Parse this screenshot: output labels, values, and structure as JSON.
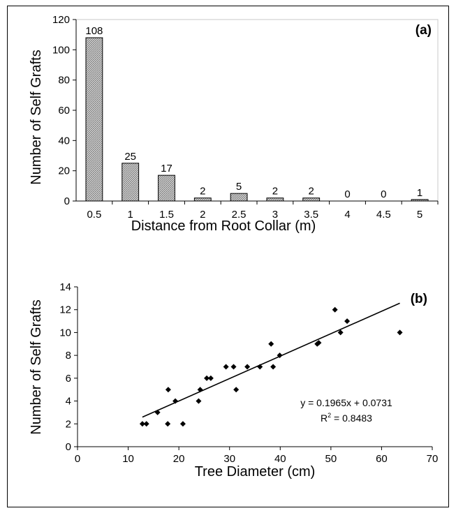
{
  "chart_data": [
    {
      "type": "bar",
      "panel_label": "(a)",
      "categories": [
        "0.5",
        "1",
        "1.5",
        "2",
        "2.5",
        "3",
        "3.5",
        "4",
        "4.5",
        "5"
      ],
      "values": [
        108,
        25,
        17,
        2,
        5,
        2,
        2,
        0,
        0,
        1
      ],
      "data_labels": [
        "108",
        "25",
        "17",
        "2",
        "5",
        "2",
        "2",
        "0",
        "0",
        "1"
      ],
      "xlabel": "Distance from Root Collar (m)",
      "ylabel": "Number of Self Grafts",
      "ylim": [
        0,
        120
      ],
      "yticks": [
        "0",
        "20",
        "40",
        "60",
        "80",
        "100",
        "120"
      ],
      "bar_fill": "#bdbdbd",
      "grid": false
    },
    {
      "type": "scatter",
      "panel_label": "(b)",
      "points": [
        [
          12.8,
          2
        ],
        [
          13.6,
          2
        ],
        [
          15.8,
          3
        ],
        [
          17.8,
          2
        ],
        [
          17.9,
          5
        ],
        [
          19.3,
          4
        ],
        [
          20.8,
          2
        ],
        [
          23.9,
          4
        ],
        [
          24.2,
          5
        ],
        [
          25.5,
          6
        ],
        [
          26.3,
          6
        ],
        [
          29.3,
          7
        ],
        [
          30.8,
          7
        ],
        [
          31.3,
          5
        ],
        [
          33.5,
          7
        ],
        [
          36.0,
          7
        ],
        [
          38.2,
          9
        ],
        [
          38.6,
          7
        ],
        [
          39.9,
          8
        ],
        [
          47.3,
          9
        ],
        [
          47.6,
          9.1
        ],
        [
          50.8,
          12
        ],
        [
          51.9,
          10
        ],
        [
          53.2,
          11
        ],
        [
          63.6,
          10
        ]
      ],
      "trendline": {
        "slope": 0.1965,
        "intercept": 0.0731,
        "x_range": [
          12.8,
          63.6
        ]
      },
      "equation_text": "y = 0.1965x + 0.0731",
      "r2_prefix": "R",
      "r2_sup": "2",
      "r2_value": " = 0.8483",
      "xlabel": "Tree Diameter (cm)",
      "ylabel": "Number of Self Grafts",
      "xlim": [
        0,
        70
      ],
      "ylim": [
        0,
        14
      ],
      "xticks": [
        "0",
        "10",
        "20",
        "30",
        "40",
        "50",
        "60",
        "70"
      ],
      "yticks": [
        "0",
        "2",
        "4",
        "6",
        "8",
        "10",
        "12",
        "14"
      ],
      "grid": false
    }
  ]
}
